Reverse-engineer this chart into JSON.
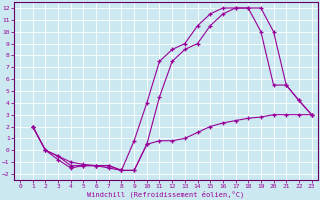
{
  "xlabel": "Windchill (Refroidissement éolien,°C)",
  "background_color": "#cce8f0",
  "grid_color": "#aadddd",
  "line_color": "#990099",
  "spine_color": "#660066",
  "xlim": [
    -0.5,
    23.5
  ],
  "ylim": [
    -2.5,
    12.5
  ],
  "xticks": [
    0,
    1,
    2,
    3,
    4,
    5,
    6,
    7,
    8,
    9,
    10,
    11,
    12,
    13,
    14,
    15,
    16,
    17,
    18,
    19,
    20,
    21,
    22,
    23
  ],
  "yticks": [
    -2,
    -1,
    0,
    1,
    2,
    3,
    4,
    5,
    6,
    7,
    8,
    9,
    10,
    11,
    12
  ],
  "curve1_x": [
    1,
    2,
    3,
    4,
    5,
    6,
    7,
    8,
    9,
    10,
    11,
    12,
    13,
    14,
    15,
    16,
    17,
    18,
    19,
    20,
    21,
    22,
    23
  ],
  "curve1_y": [
    2.0,
    0.0,
    -0.5,
    -1.3,
    -1.3,
    -1.3,
    -1.3,
    -1.7,
    -1.7,
    0.5,
    4.5,
    7.5,
    8.5,
    9.0,
    10.5,
    11.5,
    12.0,
    12.0,
    12.0,
    10.0,
    5.5,
    4.2,
    3.0
  ],
  "curve2_x": [
    1,
    2,
    3,
    4,
    5,
    6,
    7,
    8,
    9,
    10,
    11,
    12,
    13,
    14,
    15,
    16,
    17,
    18,
    19,
    20,
    21,
    22,
    23
  ],
  "curve2_y": [
    2.0,
    0.0,
    -0.5,
    -1.0,
    -1.2,
    -1.3,
    -1.5,
    -1.7,
    -1.7,
    0.5,
    0.8,
    0.8,
    1.0,
    1.5,
    2.0,
    2.3,
    2.5,
    2.7,
    2.8,
    3.0,
    3.0,
    3.0,
    3.0
  ],
  "curve3_x": [
    1,
    2,
    3,
    4,
    5,
    6,
    7,
    8,
    9,
    10,
    11,
    12,
    13,
    14,
    15,
    16,
    17,
    18,
    19,
    20,
    21,
    22,
    23
  ],
  "curve3_y": [
    2.0,
    0.0,
    -0.8,
    -1.5,
    -1.3,
    -1.3,
    -1.3,
    -1.7,
    0.8,
    4.0,
    7.5,
    8.5,
    9.0,
    10.5,
    11.5,
    12.0,
    12.0,
    12.0,
    10.0,
    5.5,
    5.5,
    4.2,
    3.0
  ]
}
